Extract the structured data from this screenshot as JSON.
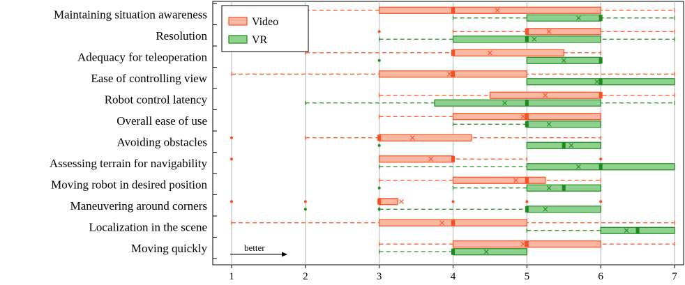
{
  "chart_data": {
    "type": "boxplot",
    "orientation": "horizontal",
    "title": "",
    "xlabel": "",
    "ylabel": "",
    "xlim": [
      0.75,
      7.15
    ],
    "xticks": [
      1,
      2,
      3,
      4,
      5,
      6,
      7
    ],
    "grid": "vertical",
    "legend": {
      "placement": "top-left"
    },
    "annotation": {
      "text": "better",
      "direction": "right"
    },
    "colors": {
      "Video": {
        "stroke": "#ff4d1f",
        "fill": "#fdb8a3"
      },
      "VR": {
        "stroke": "#1f8a1f",
        "fill": "#8fd18f"
      }
    },
    "series": [
      {
        "name": "Video"
      },
      {
        "name": "VR"
      }
    ],
    "categories": [
      "Maintaining situation awareness",
      "Resolution",
      "Adequacy for teleoperation",
      "Ease of controlling view",
      "Robot control latency",
      "Overall ease of use",
      "Avoiding obstacles",
      "Assessing terrain for navigability",
      "Moving robot in desired position",
      "Maneuvering around corners",
      "Localization in the scene",
      "Moving quickly"
    ],
    "boxes": [
      {
        "category": "Maintaining situation awareness",
        "Video": {
          "min": 2,
          "q1": 3,
          "median": 4,
          "q3": 6,
          "max": 7,
          "mean": 4.6,
          "outliers": []
        },
        "VR": {
          "min": 4,
          "q1": 5,
          "median": 6,
          "q3": 6,
          "max": 7,
          "mean": 5.7,
          "outliers": []
        }
      },
      {
        "category": "Resolution",
        "Video": {
          "min": 4,
          "q1": 5,
          "median": 5,
          "q3": 6,
          "max": 7,
          "mean": 5.3,
          "outliers": [
            3
          ]
        },
        "VR": {
          "min": 3,
          "q1": 4,
          "median": 5,
          "q3": 6,
          "max": 7,
          "mean": 5.1,
          "outliers": []
        }
      },
      {
        "category": "Adequacy for teleoperation",
        "Video": {
          "min": 2,
          "q1": 4,
          "median": 4,
          "q3": 5.5,
          "max": 6,
          "mean": 4.5,
          "outliers": []
        },
        "VR": {
          "min": 5,
          "q1": 5,
          "median": 6,
          "q3": 6,
          "max": 6,
          "mean": 5.5,
          "outliers": [
            3
          ]
        }
      },
      {
        "category": "Ease of controlling view",
        "Video": {
          "min": 1,
          "q1": 3,
          "median": 4,
          "q3": 5,
          "max": 7,
          "mean": 3.95,
          "outliers": []
        },
        "VR": {
          "min": 5,
          "q1": 5,
          "median": 6,
          "q3": 7,
          "max": 7,
          "mean": 5.95,
          "outliers": []
        }
      },
      {
        "category": "Robot control latency",
        "Video": {
          "min": 3,
          "q1": 4.5,
          "median": 6,
          "q3": 6,
          "max": 7,
          "mean": 5.25,
          "outliers": []
        },
        "VR": {
          "min": 2,
          "q1": 3.75,
          "median": 5,
          "q3": 6,
          "max": 7,
          "mean": 4.7,
          "outliers": []
        }
      },
      {
        "category": "Overall ease of use",
        "Video": {
          "min": 3,
          "q1": 4,
          "median": 5,
          "q3": 6,
          "max": 6,
          "mean": 4.95,
          "outliers": []
        },
        "VR": {
          "min": 4,
          "q1": 5,
          "median": 5,
          "q3": 6,
          "max": 6,
          "mean": 5.3,
          "outliers": []
        }
      },
      {
        "category": "Avoiding obstacles",
        "Video": {
          "min": 2,
          "q1": 3,
          "median": 3,
          "q3": 4.25,
          "max": 6,
          "mean": 3.45,
          "outliers": [
            1
          ]
        },
        "VR": {
          "min": 5,
          "q1": 5,
          "median": 5.5,
          "q3": 6,
          "max": 6,
          "mean": 5.6,
          "outliers": [
            3
          ]
        }
      },
      {
        "category": "Assessing terrain for navigability",
        "Video": {
          "min": 3,
          "q1": 3,
          "median": 4,
          "q3": 4,
          "max": 5,
          "mean": 3.7,
          "outliers": [
            1,
            6
          ]
        },
        "VR": {
          "min": 3,
          "q1": 5,
          "median": 6,
          "q3": 7,
          "max": 7,
          "mean": 5.7,
          "outliers": []
        }
      },
      {
        "category": "Moving robot in desired position",
        "Video": {
          "min": 3,
          "q1": 4,
          "median": 5,
          "q3": 5.25,
          "max": 6,
          "mean": 4.85,
          "outliers": []
        },
        "VR": {
          "min": 4,
          "q1": 5,
          "median": 5.5,
          "q3": 6,
          "max": 6,
          "mean": 5.3,
          "outliers": [
            3
          ]
        }
      },
      {
        "category": "Maneuvering around corners",
        "Video": {
          "min": 3,
          "q1": 3,
          "median": 3,
          "q3": 3.25,
          "max": 3.25,
          "mean": 3.3,
          "outliers": [
            1,
            2,
            4,
            5,
            6
          ]
        },
        "VR": {
          "min": 3,
          "q1": 5,
          "median": 5,
          "q3": 6,
          "max": 6,
          "mean": 5.25,
          "outliers": [
            2,
            3
          ]
        }
      },
      {
        "category": "Localization in the scene",
        "Video": {
          "min": 1,
          "q1": 3,
          "median": 4,
          "q3": 5,
          "max": 7,
          "mean": 3.85,
          "outliers": []
        },
        "VR": {
          "min": 5,
          "q1": 6,
          "median": 6.5,
          "q3": 7,
          "max": 7,
          "mean": 6.35,
          "outliers": []
        }
      },
      {
        "category": "Moving quickly",
        "Video": {
          "min": 3,
          "q1": 4,
          "median": 5,
          "q3": 6,
          "max": 7,
          "mean": 4.95,
          "outliers": []
        },
        "VR": {
          "min": 3,
          "q1": 4,
          "median": 4,
          "q3": 5,
          "max": 5,
          "mean": 4.45,
          "outliers": []
        }
      }
    ]
  }
}
